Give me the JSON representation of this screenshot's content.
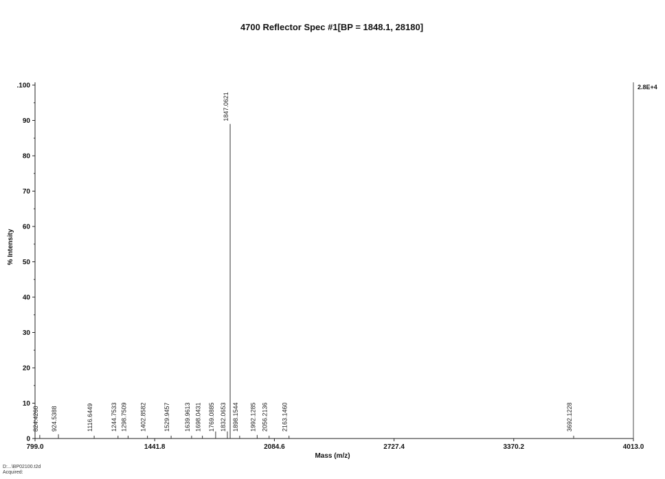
{
  "chart_data": {
    "type": "bar",
    "title": "4700 Reflector Spec #1[BP = 1848.1, 28180]",
    "xlabel": "Mass (m/z)",
    "ylabel": "% Intensity",
    "xlim": [
      799.0,
      4013.0
    ],
    "ylim": [
      0,
      100
    ],
    "x_ticks": [
      "799.0",
      "1441.8",
      "2084.6",
      "2727.4",
      "3370.2",
      "4013.0"
    ],
    "x_tick_values": [
      799.0,
      1441.8,
      2084.6,
      2727.4,
      3370.2,
      4013.0
    ],
    "y_ticks": [
      {
        "value": 0,
        "label": "0"
      },
      {
        "value": 10,
        "label": "10"
      },
      {
        "value": 20,
        "label": "20"
      },
      {
        "value": 30,
        "label": "30"
      },
      {
        "value": 40,
        "label": "40"
      },
      {
        "value": 50,
        "label": "50"
      },
      {
        "value": 60,
        "label": "60"
      },
      {
        "value": 70,
        "label": "70"
      },
      {
        "value": 80,
        "label": "80"
      },
      {
        "value": 90,
        "label": "90"
      },
      {
        "value": 100,
        "label": ".100"
      }
    ],
    "intensity_scale": "2.8E+4",
    "peaks": [
      {
        "mass": 824.426,
        "label": "824.4260",
        "intensity": 1.0
      },
      {
        "mass": 924.5388,
        "label": "924.5388",
        "intensity": 1.2
      },
      {
        "mass": 1116.6449,
        "label": "1116.6449",
        "intensity": 0.8
      },
      {
        "mass": 1244.7533,
        "label": "1244.7533",
        "intensity": 0.8
      },
      {
        "mass": 1298.7509,
        "label": "1298.7509",
        "intensity": 0.8
      },
      {
        "mass": 1402.8582,
        "label": "1402.8582",
        "intensity": 0.8
      },
      {
        "mass": 1529.9457,
        "label": "1529.9457",
        "intensity": 0.8
      },
      {
        "mass": 1639.9613,
        "label": "1639.9613",
        "intensity": 0.8
      },
      {
        "mass": 1698.0431,
        "label": "1698.0431",
        "intensity": 0.8
      },
      {
        "mass": 1769.0885,
        "label": "1769.0885",
        "intensity": 2.0
      },
      {
        "mass": 1832.0653,
        "label": "1832.0653",
        "intensity": 2.0
      },
      {
        "mass": 1847.0621,
        "label": "1847.0621",
        "intensity": 89.0
      },
      {
        "mass": 1898.1544,
        "label": "1898.1544",
        "intensity": 0.8
      },
      {
        "mass": 1992.1285,
        "label": "1992.1285",
        "intensity": 1.0
      },
      {
        "mass": 2056.2136,
        "label": "2056.2136",
        "intensity": 0.8
      },
      {
        "mass": 2163.146,
        "label": "2163.1460",
        "intensity": 0.8
      },
      {
        "mass": 3692.1228,
        "label": "3692.1228",
        "intensity": 0.8
      }
    ]
  },
  "footer": {
    "line1": "D:...\\BP02100.t2d",
    "line2": "Acquired:"
  }
}
